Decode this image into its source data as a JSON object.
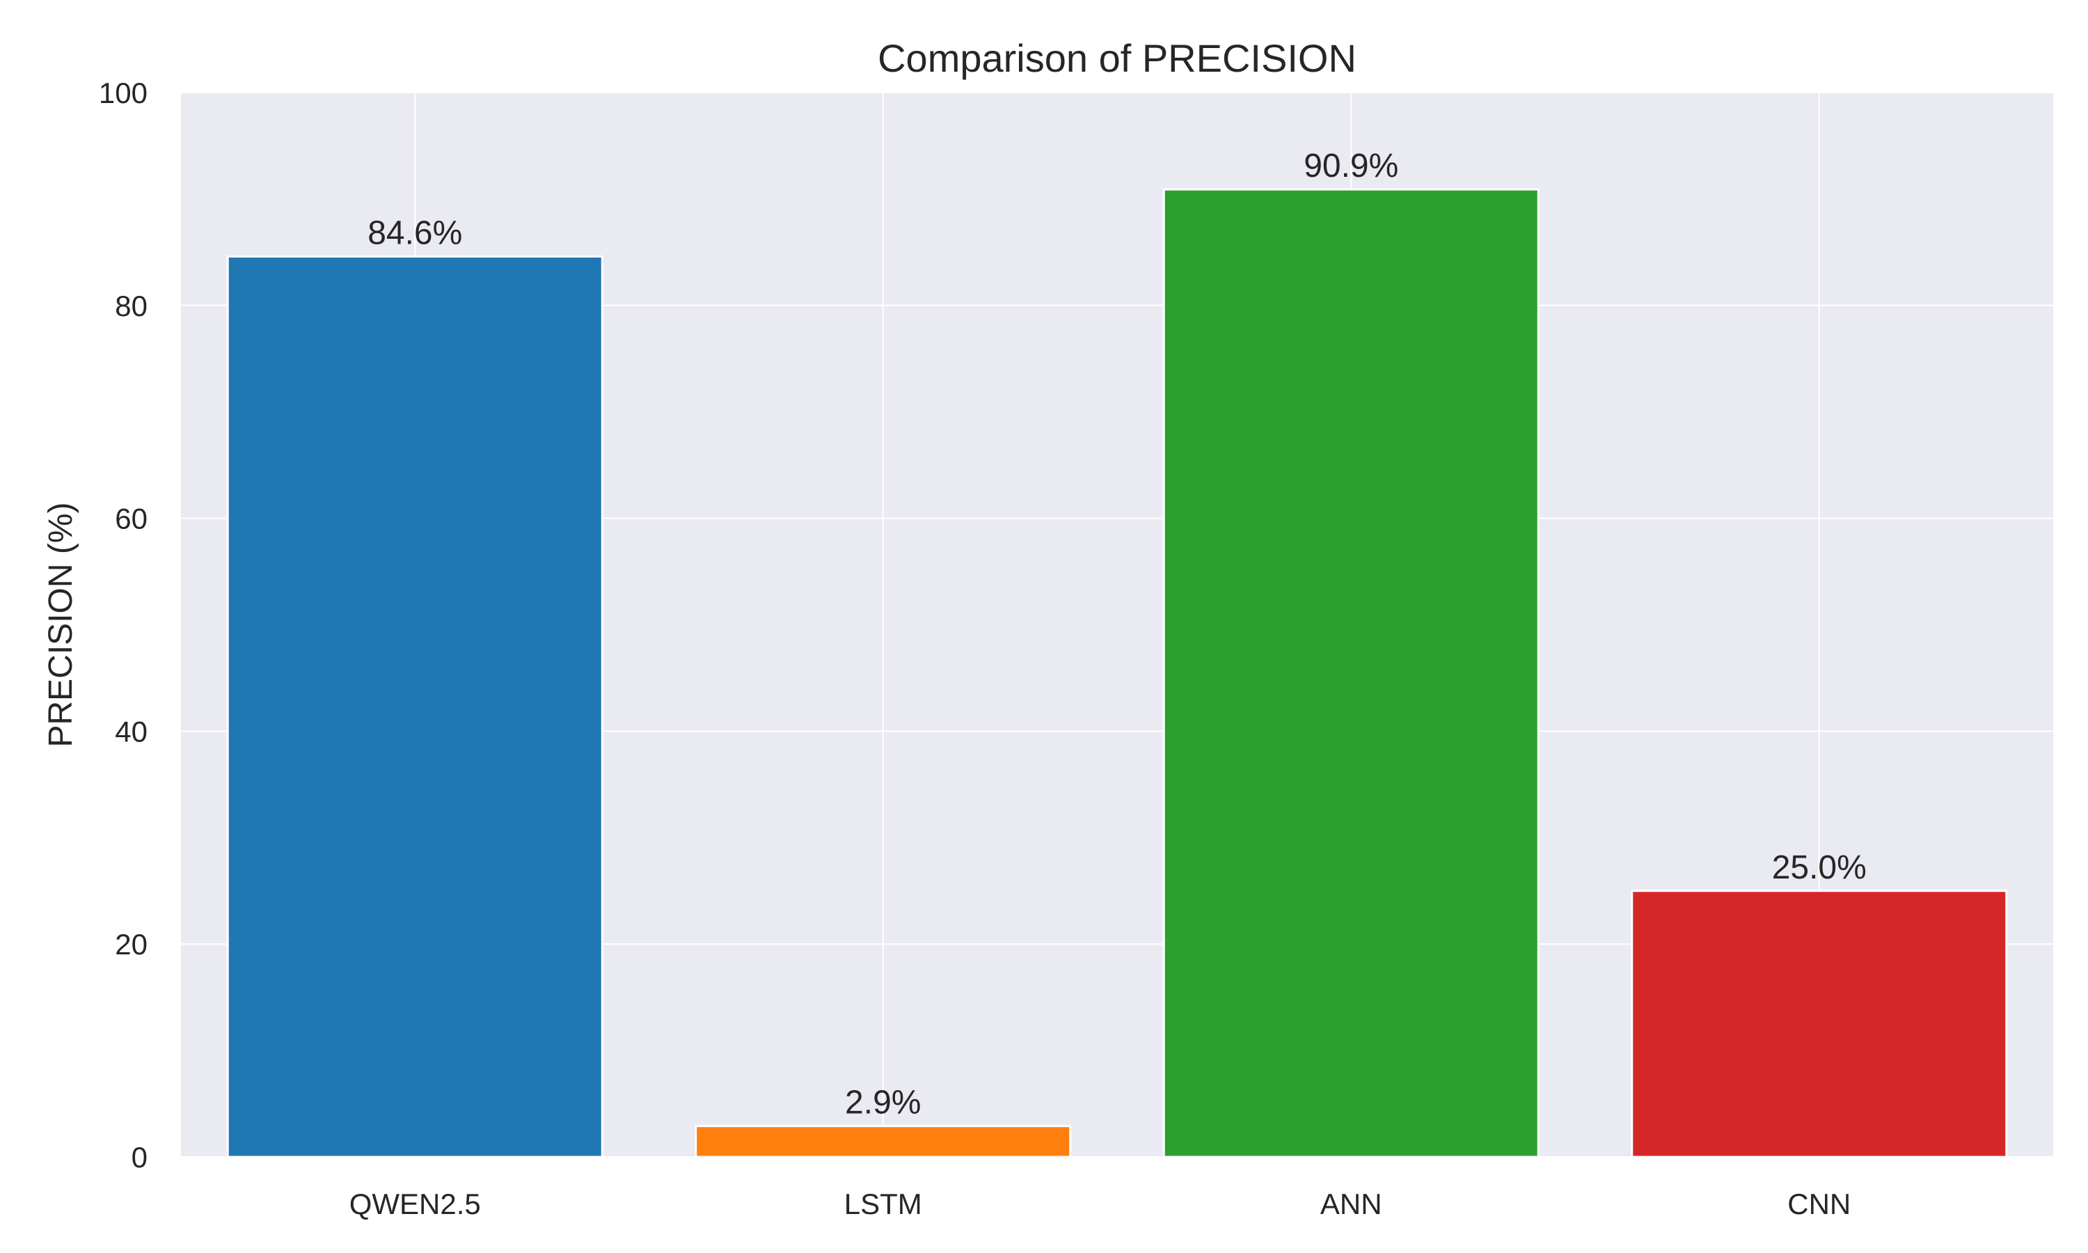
{
  "chart_data": {
    "type": "bar",
    "title": "Comparison of PRECISION",
    "xlabel": "",
    "ylabel": "PRECISION (%)",
    "categories": [
      "QWEN2.5",
      "LSTM",
      "ANN",
      "CNN"
    ],
    "values": [
      84.6,
      2.9,
      90.9,
      25.0
    ],
    "value_labels": [
      "84.6%",
      "2.9%",
      "90.9%",
      "25.0%"
    ],
    "colors": [
      "#1f77b4",
      "#ff7f0e",
      "#2ca02c",
      "#d62728"
    ],
    "ylim": [
      0,
      100
    ],
    "yticks": [
      0,
      20,
      40,
      60,
      80,
      100
    ],
    "ytick_labels": [
      "0",
      "20",
      "40",
      "60",
      "80",
      "100"
    ],
    "grid": true,
    "background_color": "#eaeaf2"
  }
}
